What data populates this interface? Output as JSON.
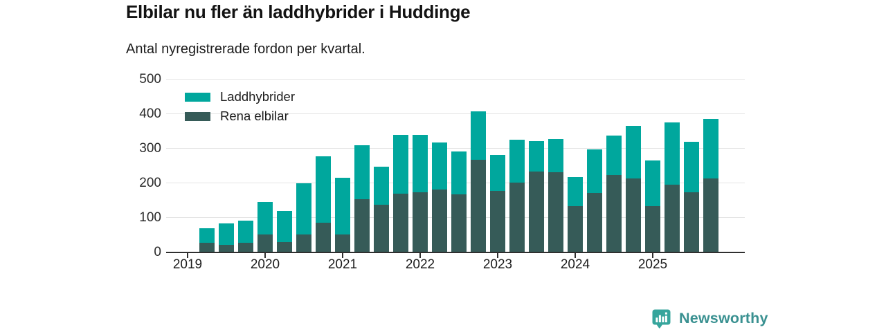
{
  "colors": {
    "laddhybrider": "#00a79d",
    "rena": "#365b58",
    "grid": "#e4e4e4",
    "axis": "#2f2f2f",
    "text": "#1c1c1c",
    "brand": "#36a59c",
    "brandtext": "#3a9191"
  },
  "chart_data": {
    "type": "bar",
    "stacked": true,
    "title": "Elbilar nu fler än laddhybrider i Huddinge",
    "subtitle": "Antal nyregistrerade fordon per kvartal.",
    "categories": [
      "2019 Q2",
      "2019 Q3",
      "2019 Q4",
      "2020 Q1",
      "2020 Q2",
      "2020 Q3",
      "2020 Q4",
      "2021 Q1",
      "2021 Q2",
      "2021 Q3",
      "2021 Q4",
      "2022 Q1",
      "2022 Q2",
      "2022 Q3",
      "2022 Q4",
      "2023 Q1",
      "2023 Q2",
      "2023 Q3",
      "2023 Q4",
      "2024 Q1",
      "2024 Q2",
      "2024 Q3",
      "2024 Q4",
      "2025 Q1",
      "2025 Q2",
      "2025 Q3",
      "2025 Q4"
    ],
    "series": [
      {
        "name": "Rena elbilar",
        "color": "#365b58",
        "stack_order": "bottom",
        "values": [
          28,
          21,
          27,
          51,
          30,
          51,
          85,
          52,
          154,
          137,
          170,
          174,
          181,
          168,
          268,
          177,
          202,
          233,
          232,
          133,
          171,
          224,
          213,
          133,
          196,
          173,
          213
        ]
      },
      {
        "name": "Laddhybrider",
        "color": "#00a79d",
        "stack_order": "top",
        "values": [
          42,
          63,
          64,
          94,
          90,
          149,
          193,
          163,
          156,
          110,
          170,
          166,
          137,
          124,
          140,
          105,
          123,
          89,
          96,
          84,
          127,
          114,
          153,
          132,
          179,
          147,
          173
        ]
      }
    ],
    "y_ticks": [
      0,
      100,
      200,
      300,
      400,
      500
    ],
    "ylim": [
      0,
      500
    ],
    "x_tick_labels": [
      "2019",
      "2020",
      "2021",
      "2022",
      "2023",
      "2024",
      "2025"
    ],
    "grid": "horizontal",
    "legend": {
      "position": "top-left-inside",
      "items": [
        {
          "label": "Laddhybrider",
          "color": "#00a79d"
        },
        {
          "label": "Rena elbilar",
          "color": "#365b58"
        }
      ]
    }
  },
  "footer": {
    "brand": "Newsworthy"
  }
}
